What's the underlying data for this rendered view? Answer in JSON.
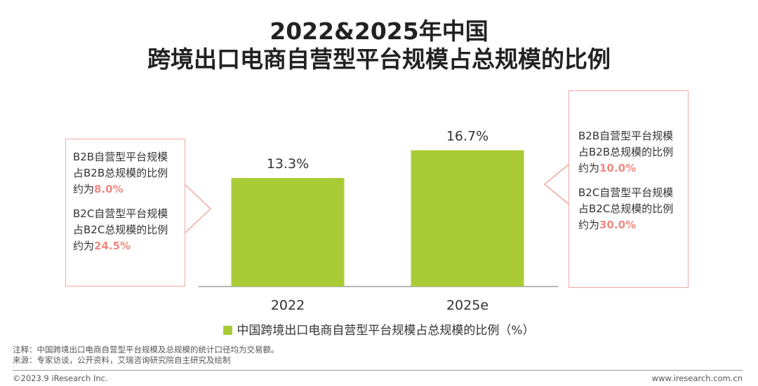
{
  "title_line1": "2022&2025年中国",
  "title_line2": "跨境出口电商自营型平台规模占总规模的比例",
  "chart_data": {
    "type": "bar",
    "categories": [
      "2022",
      "2025e"
    ],
    "series": [
      {
        "name": "中国跨境出口电商自营型平台规模占总规模的比例（%）",
        "values": [
          13.3,
          16.7
        ]
      }
    ],
    "value_labels": [
      "13.3%",
      "16.7%"
    ],
    "ylim": [
      0,
      20
    ],
    "grid": false,
    "legend_position": "bottom",
    "bar_color": "#a9cc36"
  },
  "callouts": {
    "left": {
      "b2b_line1": "B2B自营型平台规模",
      "b2b_line2": "占B2B总规模的比例",
      "b2b_prefix": "约为",
      "b2b_value": "8.0%",
      "b2c_line1": "B2C自营型平台规模",
      "b2c_line2": "占B2C总规模的比例",
      "b2c_prefix": "约为",
      "b2c_value": "24.5%"
    },
    "right": {
      "b2b_line1": "B2B自营型平台规模",
      "b2b_line2": "占B2B总规模的比例",
      "b2b_prefix": "约为",
      "b2b_value": "10.0%",
      "b2c_line1": "B2C自营型平台规模",
      "b2c_line2": "占B2C总规模的比例",
      "b2c_prefix": "约为",
      "b2c_value": "30.0%"
    },
    "border_color": "#f2a7a3",
    "highlight_color": "#f08a80"
  },
  "legend_label": "中国跨境出口电商自营型平台规模占总规模的比例（%）",
  "footnote_note": "注释：中国跨境出口电商自营型平台规模及总规模的统计口径均为交易额。",
  "footnote_source": "来源：专家访谈，公开资料，艾瑞咨询研究院自主研究及绘制",
  "copyright": "©2023.9 iResearch Inc.",
  "website": "www.iresearch.com.cn"
}
